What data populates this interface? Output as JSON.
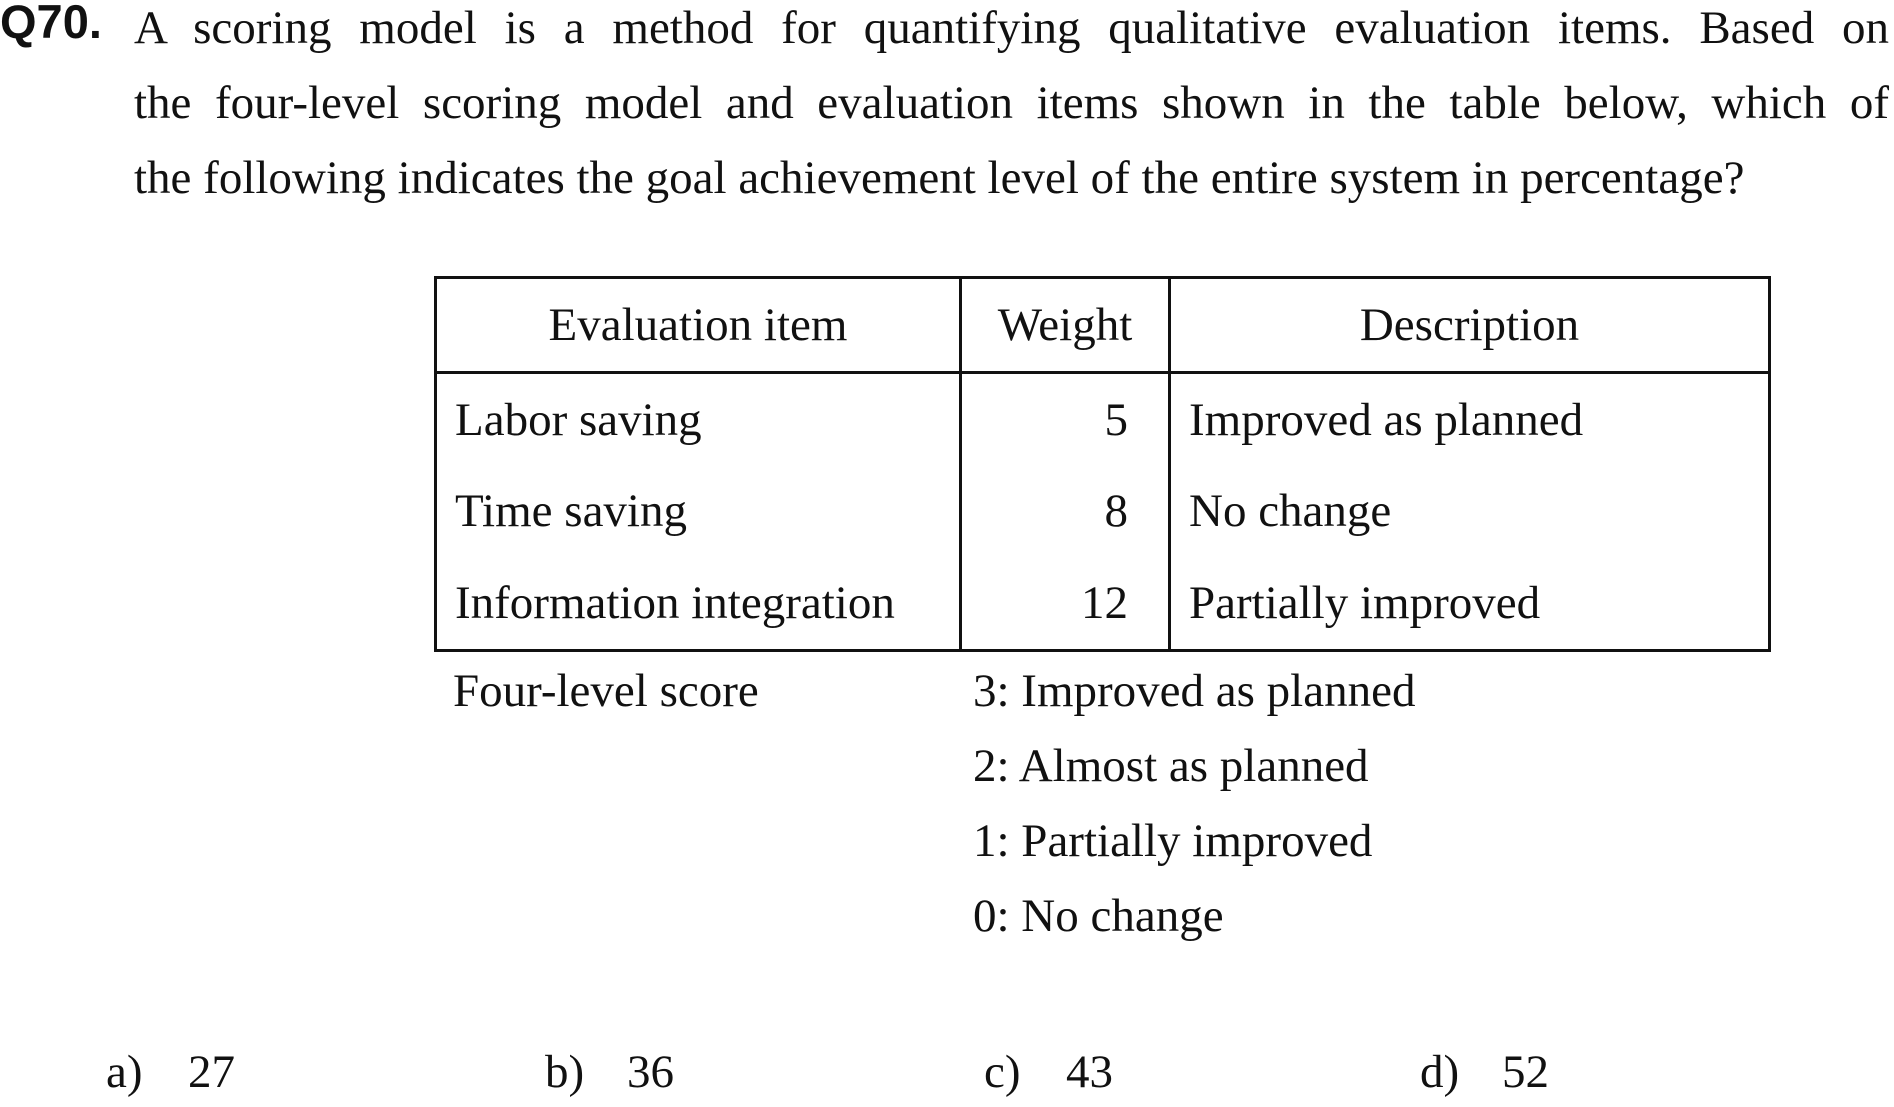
{
  "question": {
    "number": "Q70.",
    "lines": [
      "A scoring model is a method for quantifying qualitative evaluation items.   Based on",
      "the four-level scoring model and evaluation items shown in the table below, which of",
      "the following indicates the goal achievement level of the entire system in percentage?"
    ]
  },
  "table": {
    "headers": [
      "Evaluation item",
      "Weight",
      "Description"
    ],
    "rows": [
      {
        "item": "Labor saving",
        "weight": "5",
        "description": "Improved as planned"
      },
      {
        "item": "Time saving",
        "weight": "8",
        "description": "No change"
      },
      {
        "item": "Information integration",
        "weight": "12",
        "description": "Partially improved"
      }
    ]
  },
  "legend": {
    "label": "Four-level score",
    "levels": [
      "3: Improved as planned",
      "2: Almost as planned",
      "1: Partially improved",
      "0: No change"
    ]
  },
  "options": [
    {
      "label": "a)",
      "value": "27"
    },
    {
      "label": "b)",
      "value": "36"
    },
    {
      "label": "c)",
      "value": "43"
    },
    {
      "label": "d)",
      "value": "52"
    }
  ]
}
